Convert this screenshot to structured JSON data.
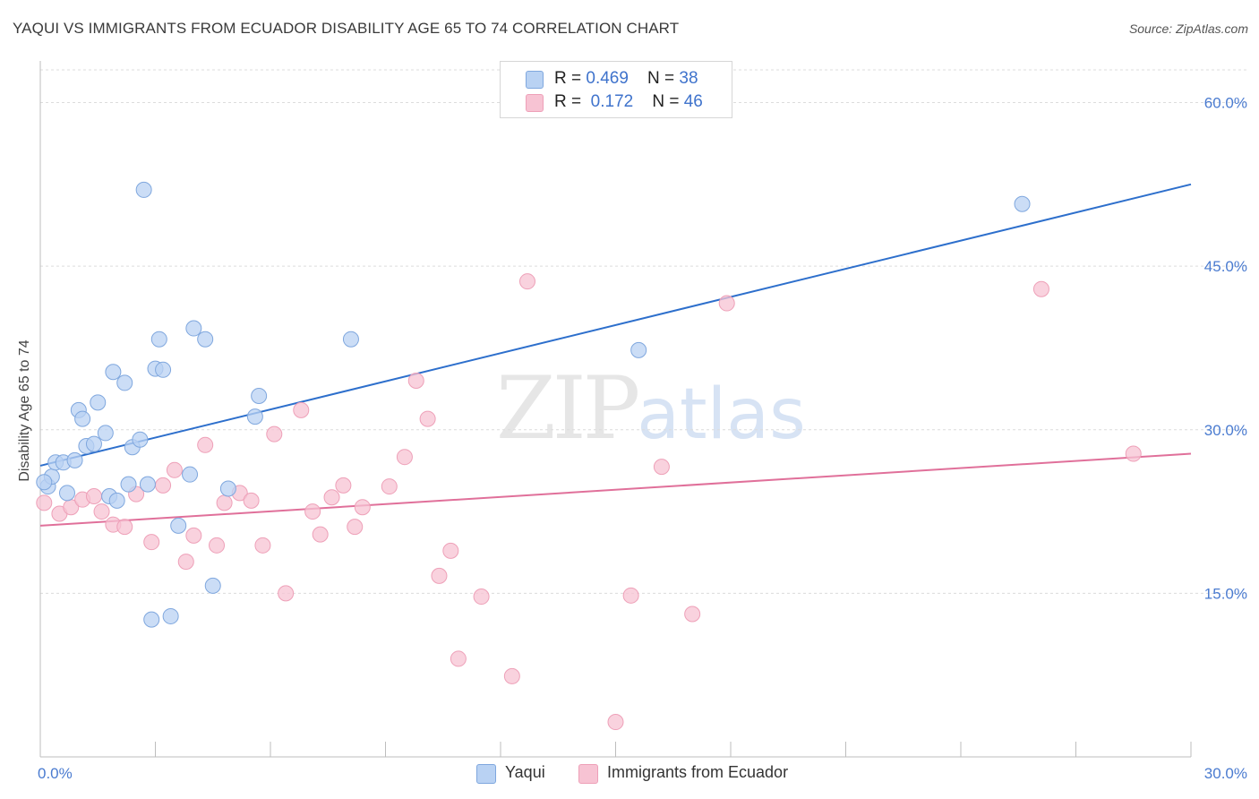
{
  "title": "YAQUI VS IMMIGRANTS FROM ECUADOR DISABILITY AGE 65 TO 74 CORRELATION CHART",
  "source": "Source: ZipAtlas.com",
  "watermark": {
    "zip": "ZIP",
    "atlas": "atlas"
  },
  "legend": {
    "rows": [
      {
        "r_label": "R = ",
        "r_value": "0.469",
        "n_label": "N = ",
        "n_value": "38"
      },
      {
        "r_label": "R = ",
        "r_value": " 0.172",
        "n_label": "N = ",
        "n_value": "46"
      }
    ]
  },
  "bottom_legend": {
    "series1": "Yaqui",
    "series2": "Immigrants from Ecuador"
  },
  "colors": {
    "blue_fill": "#b9d2f3",
    "blue_stroke": "#7fa7de",
    "blue_line": "#2d6fcc",
    "pink_fill": "#f7c3d3",
    "pink_stroke": "#eea0b8",
    "pink_line": "#e0709a",
    "grid": "#dcdcdc",
    "tick_text": "#4a7bd0"
  },
  "chart_data": {
    "type": "scatter",
    "title": "YAQUI VS IMMIGRANTS FROM ECUADOR DISABILITY AGE 65 TO 74 CORRELATION CHART",
    "xlabel": "",
    "ylabel": "Disability Age 65 to 74",
    "xlim": [
      0,
      30
    ],
    "ylim": [
      0,
      63
    ],
    "x_tick_labels": [
      "0.0%",
      "30.0%"
    ],
    "y_ticks": [
      15,
      30,
      45,
      60
    ],
    "y_tick_labels": [
      "15.0%",
      "30.0%",
      "45.0%",
      "60.0%"
    ],
    "grid": "horizontal dashed",
    "legend_placement": "top-center",
    "series": [
      {
        "name": "Yaqui",
        "color": "#b9d2f3",
        "trend": {
          "x": [
            0,
            30
          ],
          "y": [
            26.7,
            52.5
          ]
        },
        "points": [
          [
            0.2,
            24.8
          ],
          [
            0.3,
            25.7
          ],
          [
            0.4,
            27.0
          ],
          [
            0.6,
            27.0
          ],
          [
            0.7,
            24.2
          ],
          [
            0.9,
            27.2
          ],
          [
            1.0,
            31.8
          ],
          [
            1.1,
            31.0
          ],
          [
            1.2,
            28.5
          ],
          [
            1.4,
            28.7
          ],
          [
            1.5,
            32.5
          ],
          [
            1.7,
            29.7
          ],
          [
            1.8,
            23.9
          ],
          [
            1.9,
            35.3
          ],
          [
            2.0,
            23.5
          ],
          [
            2.2,
            34.3
          ],
          [
            2.3,
            25.0
          ],
          [
            2.4,
            28.4
          ],
          [
            2.6,
            29.1
          ],
          [
            2.7,
            52.0
          ],
          [
            2.8,
            25.0
          ],
          [
            2.9,
            12.6
          ],
          [
            3.0,
            35.6
          ],
          [
            3.1,
            38.3
          ],
          [
            3.2,
            35.5
          ],
          [
            3.4,
            12.9
          ],
          [
            3.6,
            21.2
          ],
          [
            3.9,
            25.9
          ],
          [
            4.0,
            39.3
          ],
          [
            4.3,
            38.3
          ],
          [
            4.5,
            15.7
          ],
          [
            4.9,
            24.6
          ],
          [
            5.6,
            31.2
          ],
          [
            5.7,
            33.1
          ],
          [
            8.1,
            38.3
          ],
          [
            15.6,
            37.3
          ],
          [
            25.6,
            50.7
          ],
          [
            0.1,
            25.2
          ]
        ]
      },
      {
        "name": "Immigrants from Ecuador",
        "color": "#f7c3d3",
        "trend": {
          "x": [
            0,
            30
          ],
          "y": [
            21.2,
            27.8
          ]
        },
        "points": [
          [
            0.1,
            23.3
          ],
          [
            0.5,
            22.3
          ],
          [
            0.8,
            22.9
          ],
          [
            1.1,
            23.6
          ],
          [
            1.4,
            23.9
          ],
          [
            1.6,
            22.5
          ],
          [
            1.9,
            21.3
          ],
          [
            2.2,
            21.1
          ],
          [
            2.5,
            24.1
          ],
          [
            2.9,
            19.7
          ],
          [
            3.2,
            24.9
          ],
          [
            3.5,
            26.3
          ],
          [
            3.8,
            17.9
          ],
          [
            4.0,
            20.3
          ],
          [
            4.3,
            28.6
          ],
          [
            4.6,
            19.4
          ],
          [
            4.8,
            23.3
          ],
          [
            5.2,
            24.2
          ],
          [
            5.5,
            23.5
          ],
          [
            5.8,
            19.4
          ],
          [
            6.1,
            29.6
          ],
          [
            6.4,
            15.0
          ],
          [
            6.8,
            31.8
          ],
          [
            7.1,
            22.5
          ],
          [
            7.3,
            20.4
          ],
          [
            7.6,
            23.8
          ],
          [
            7.9,
            24.9
          ],
          [
            8.2,
            21.1
          ],
          [
            8.4,
            22.9
          ],
          [
            9.1,
            24.8
          ],
          [
            9.5,
            27.5
          ],
          [
            9.8,
            34.5
          ],
          [
            10.1,
            31.0
          ],
          [
            10.4,
            16.6
          ],
          [
            10.7,
            18.9
          ],
          [
            10.9,
            9.0
          ],
          [
            11.5,
            14.7
          ],
          [
            12.3,
            7.4
          ],
          [
            12.7,
            43.6
          ],
          [
            15.0,
            3.2
          ],
          [
            15.4,
            14.8
          ],
          [
            16.2,
            26.6
          ],
          [
            17.0,
            13.1
          ],
          [
            17.9,
            41.6
          ],
          [
            26.1,
            42.9
          ],
          [
            28.5,
            27.8
          ]
        ]
      }
    ]
  }
}
